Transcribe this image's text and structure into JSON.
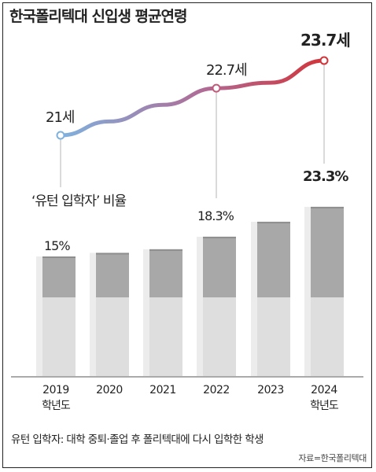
{
  "chart_data": {
    "title": "한국폴리텍대 신입생 평균연령",
    "source": "자료=한국폴리텍대",
    "footnote": "유턴 입학자: 대학 중퇴·졸업 후 폴리텍대에 다시 입학한 학생",
    "x": [
      "2019",
      "2020",
      "2021",
      "2022",
      "2023",
      "2024"
    ],
    "x_sublabels": [
      "학년도",
      "",
      "",
      "",
      "",
      "학년도"
    ],
    "line": {
      "type": "line",
      "values": [
        21.0,
        21.5,
        22.1,
        22.7,
        22.9,
        23.7
      ],
      "labels": [
        "21세",
        "",
        "",
        "22.7세",
        "",
        "23.7세"
      ],
      "colors": {
        "start": "#7fb1de",
        "end": "#d2343a"
      }
    },
    "bars": {
      "type": "bar",
      "name": "‘유턴 입학자’ 비율",
      "values": [
        15.0,
        15.6,
        16.2,
        18.3,
        20.8,
        23.3
      ],
      "labels": [
        "15%",
        "",
        "",
        "18.3%",
        "",
        "23.3%"
      ],
      "colors": {
        "top": "#a8a8a8",
        "bottom": "#dedede",
        "side": "#ececec"
      }
    }
  }
}
